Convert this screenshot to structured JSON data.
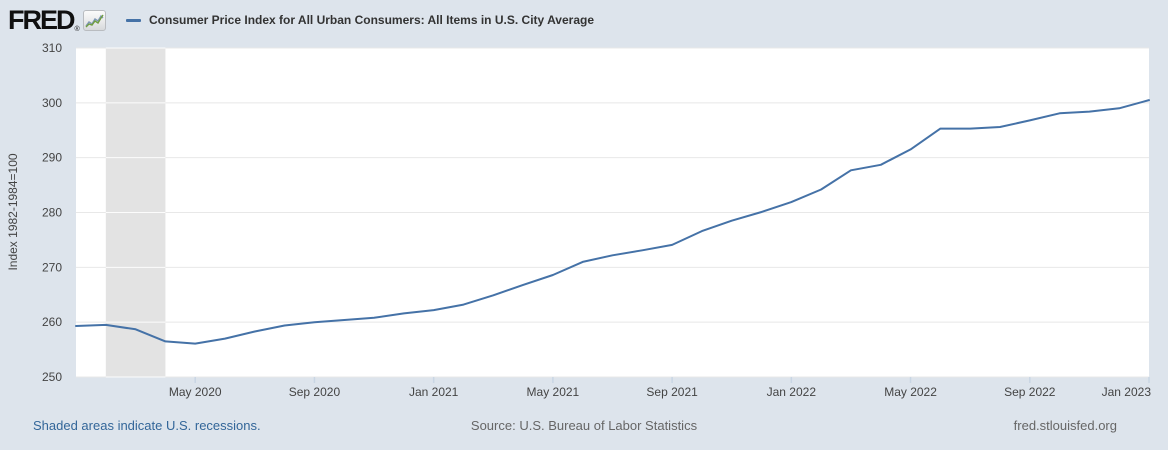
{
  "header": {
    "logo_text": "FRED",
    "registered_mark": "®",
    "title": "Consumer Price Index for All Urban Consumers: All Items in U.S. City Average"
  },
  "footer": {
    "recession_note": "Shaded areas indicate U.S. recessions.",
    "source": "Source: U.S. Bureau of Labor Statistics",
    "site": "fred.stlouisfed.org"
  },
  "colors": {
    "page_background": "#dde4ec",
    "plot_background": "#ffffff",
    "gridline": "#e8e8e8",
    "recession_band": "#e3e3e3",
    "series_line": "#4572a7",
    "axis_text": "#444444",
    "title_text": "#333333",
    "footer_text": "#666666",
    "footer_link": "#336699",
    "tick_mark": "#c9d6e4",
    "logo_icon_green": "#6f9e3f",
    "logo_icon_blue": "#7f97b5"
  },
  "chart_data": {
    "type": "line",
    "title": "Consumer Price Index for All Urban Consumers: All Items in U.S. City Average",
    "xlabel": "",
    "ylabel": "Index 1982-1984=100",
    "y_axis_title": "Index 1982-1984=100",
    "ylim": [
      250,
      310
    ],
    "y_ticks": [
      250,
      260,
      270,
      280,
      290,
      300,
      310
    ],
    "grid": true,
    "legend_position": "top-left",
    "x": [
      "2020-01",
      "2020-02",
      "2020-03",
      "2020-04",
      "2020-05",
      "2020-06",
      "2020-07",
      "2020-08",
      "2020-09",
      "2020-10",
      "2020-11",
      "2020-12",
      "2021-01",
      "2021-02",
      "2021-03",
      "2021-04",
      "2021-05",
      "2021-06",
      "2021-07",
      "2021-08",
      "2021-09",
      "2021-10",
      "2021-11",
      "2021-12",
      "2022-01",
      "2022-02",
      "2022-03",
      "2022-04",
      "2022-05",
      "2022-06",
      "2022-07",
      "2022-08",
      "2022-09",
      "2022-10",
      "2022-11",
      "2022-12",
      "2023-01"
    ],
    "x_ticks": [
      {
        "index": 4,
        "label": "May 2020"
      },
      {
        "index": 8,
        "label": "Sep 2020"
      },
      {
        "index": 12,
        "label": "Jan 2021"
      },
      {
        "index": 16,
        "label": "May 2021"
      },
      {
        "index": 20,
        "label": "Sep 2021"
      },
      {
        "index": 24,
        "label": "Jan 2022"
      },
      {
        "index": 28,
        "label": "May 2022"
      },
      {
        "index": 32,
        "label": "Sep 2022"
      },
      {
        "index": 36,
        "label": "Jan 2023"
      }
    ],
    "series": [
      {
        "name": "Consumer Price Index for All Urban Consumers: All Items in U.S. City Average",
        "color": "#4572a7",
        "values": [
          259.3,
          259.5,
          258.7,
          256.5,
          256.1,
          257.0,
          258.3,
          259.4,
          260.0,
          260.4,
          260.8,
          261.6,
          262.2,
          263.2,
          264.9,
          266.8,
          268.6,
          271.0,
          272.2,
          273.1,
          274.1,
          276.6,
          278.5,
          280.1,
          281.9,
          284.2,
          287.7,
          288.7,
          291.5,
          295.3,
          295.3,
          295.6,
          296.8,
          298.1,
          298.4,
          299.0,
          300.5
        ]
      }
    ],
    "recession_bands": [
      {
        "start": "2020-02",
        "end": "2020-04"
      }
    ]
  }
}
